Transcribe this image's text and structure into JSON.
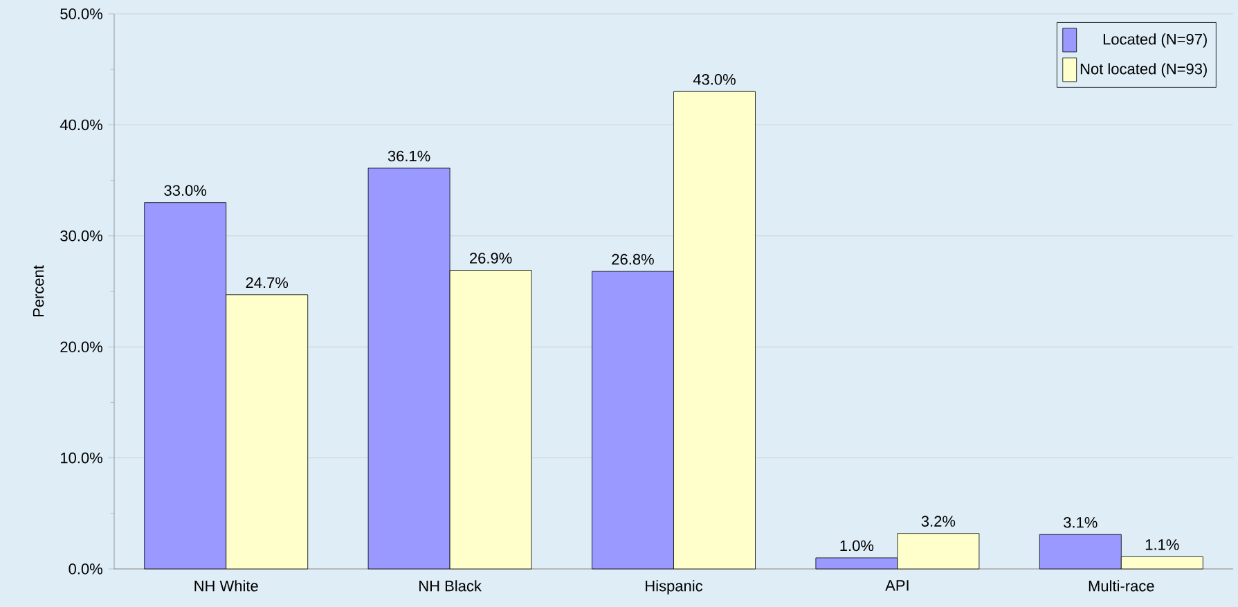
{
  "chart_data": {
    "type": "bar",
    "ylabel": "Percent",
    "categories": [
      "NH White",
      "NH Black",
      "Hispanic",
      "API",
      "Multi-race"
    ],
    "series": [
      {
        "name": "Located (N=97)",
        "color": "#9999ff",
        "values": [
          33.0,
          36.1,
          26.8,
          1.0,
          3.1
        ],
        "value_labels": [
          "33.0%",
          "36.1%",
          "26.8%",
          "1.0%",
          "3.1%"
        ]
      },
      {
        "name": "Not located (N=93)",
        "color": "#ffffcc",
        "values": [
          24.7,
          26.9,
          43.0,
          3.2,
          1.1
        ],
        "value_labels": [
          "24.7%",
          "26.9%",
          "43.0%",
          "3.2%",
          "1.1%"
        ]
      }
    ],
    "ylim": [
      0,
      50
    ],
    "yticks": [
      {
        "value": 0,
        "label": "0.0%"
      },
      {
        "value": 10,
        "label": "10.0%"
      },
      {
        "value": 20,
        "label": "20.0%"
      },
      {
        "value": 30,
        "label": "30.0%"
      },
      {
        "value": 40,
        "label": "40.0%"
      },
      {
        "value": 50,
        "label": "50.0%"
      }
    ],
    "grid": "y",
    "legend": "top right"
  }
}
